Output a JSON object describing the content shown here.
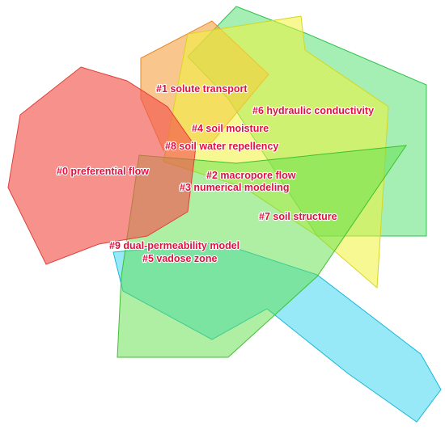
{
  "clusters": [
    {
      "label": "#0 preferential flow"
    },
    {
      "label": "#1 solute transport"
    },
    {
      "label": "#2 macropore flow"
    },
    {
      "label": "#3 numerical modeling"
    },
    {
      "label": "#4 soil moisture"
    },
    {
      "label": "#5 vadose zone"
    },
    {
      "label": "#6 hydraulic conductivity"
    },
    {
      "label": "#7 soil structure"
    },
    {
      "label": "#8 soil water repellency"
    },
    {
      "label": "#9 dual-permeability model"
    }
  ]
}
